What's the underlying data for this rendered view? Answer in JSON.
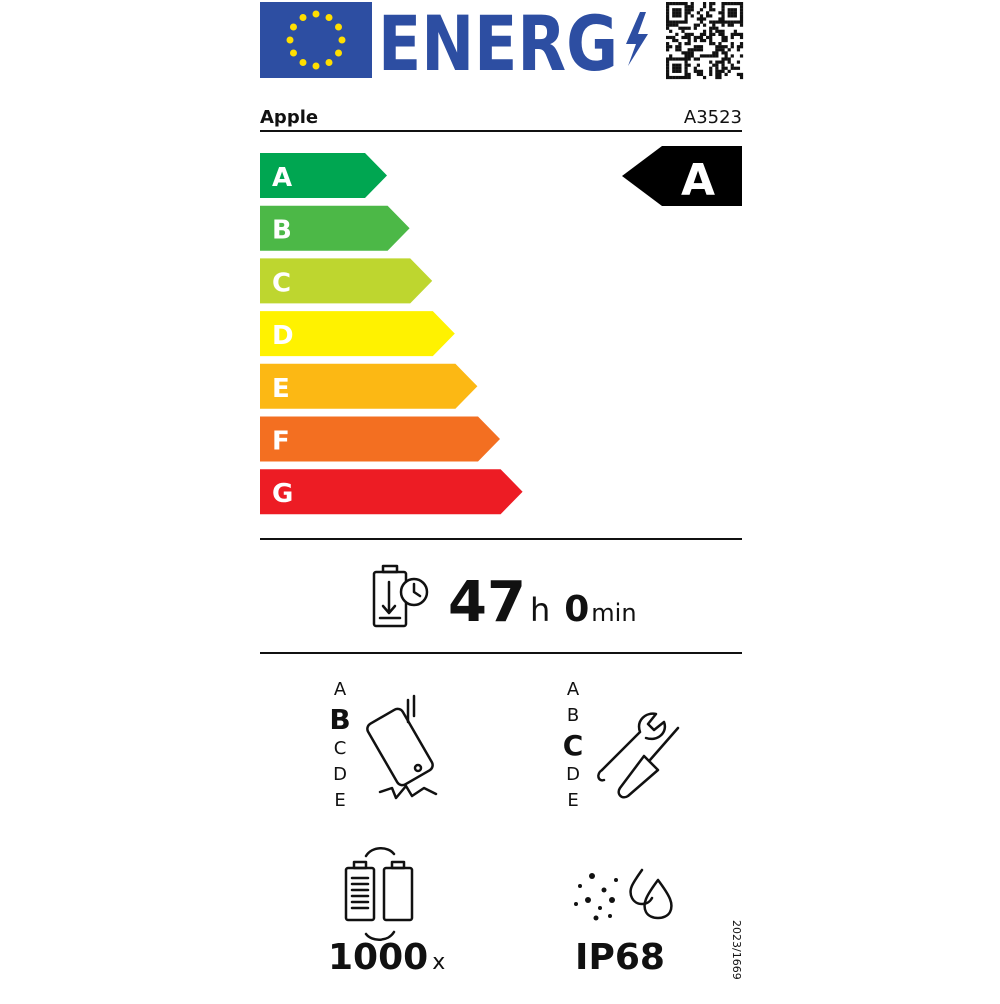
{
  "header": {
    "logo": "ENERG",
    "supplier": "Apple",
    "model": "A3523"
  },
  "energy_scale": {
    "classes": [
      "A",
      "B",
      "C",
      "D",
      "E",
      "F",
      "G"
    ],
    "colors": [
      "#00a651",
      "#4cb847",
      "#bed62f",
      "#fff200",
      "#fcb814",
      "#f36f21",
      "#ed1c24"
    ],
    "rating": "A"
  },
  "battery_endurance": {
    "hours": 47,
    "hours_unit": "h",
    "minutes": 0,
    "minutes_unit": "min"
  },
  "drop_reliability": {
    "classes": [
      "A",
      "B",
      "C",
      "D",
      "E"
    ],
    "rating": "B"
  },
  "repairability": {
    "classes": [
      "A",
      "B",
      "C",
      "D",
      "E"
    ],
    "rating": "C"
  },
  "battery_cycles": {
    "value": 1000,
    "unit": "x"
  },
  "ingress_protection": "IP68",
  "regulation": "2023/1669"
}
